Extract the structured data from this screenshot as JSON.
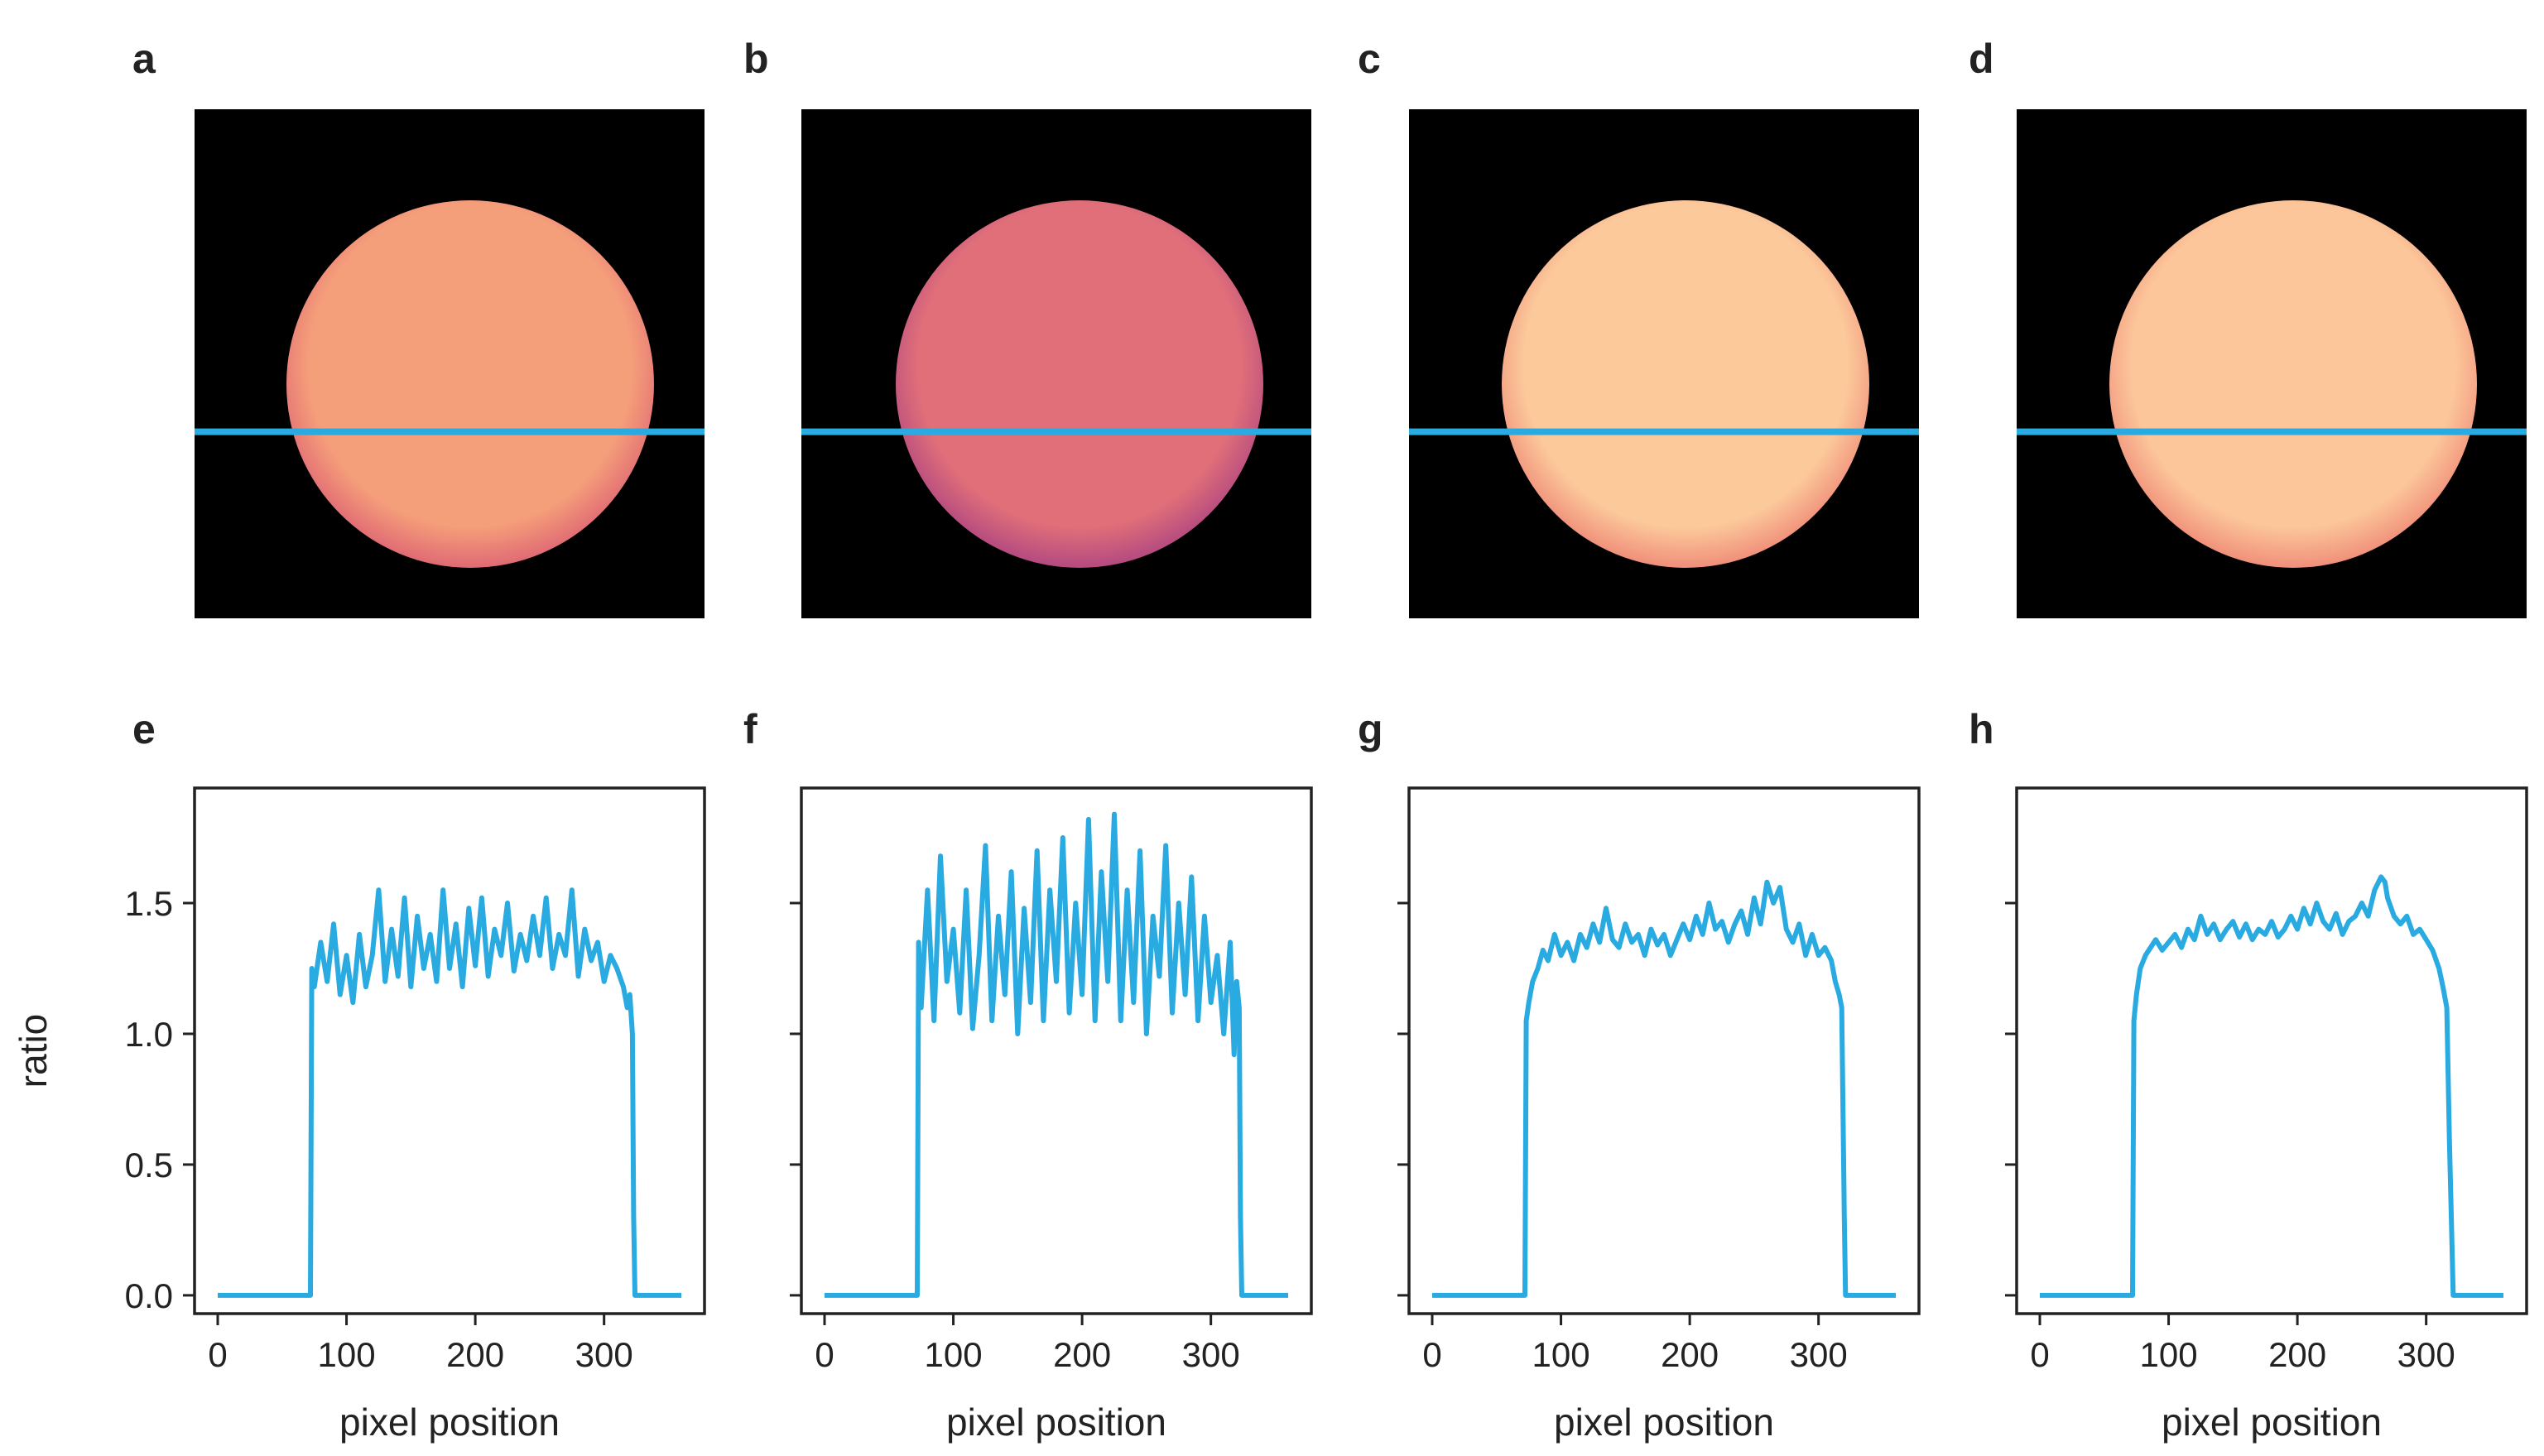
{
  "colors": {
    "line": "#29abe2",
    "image_background": "#000000",
    "frame": "#222222",
    "text": "#222222"
  },
  "image_panels": [
    {
      "label": "a",
      "disc_core": "#f59e7a",
      "disc_edge": "#e06a74",
      "line_row_fraction": 0.64
    },
    {
      "label": "b",
      "disc_core": "#e06f79",
      "disc_edge": "#b44a80",
      "line_row_fraction": 0.64
    },
    {
      "label": "c",
      "disc_core": "#fcc99b",
      "disc_edge": "#f08f7a",
      "line_row_fraction": 0.64
    },
    {
      "label": "d",
      "disc_core": "#fcc69a",
      "disc_edge": "#f0907a",
      "line_row_fraction": 0.64
    }
  ],
  "chart_data": [
    {
      "type": "line",
      "label": "e",
      "xlabel": "pixel position",
      "ylabel": "ratio",
      "xlim": [
        -18,
        378
      ],
      "ylim": [
        -0.07,
        1.94
      ],
      "xticks": [
        0,
        100,
        200,
        300
      ],
      "yticks": [
        0.0,
        0.5,
        1.0,
        1.5
      ],
      "xtick_labels": [
        "0",
        "100",
        "200",
        "300"
      ],
      "ytick_labels": [
        "0.0",
        "0.5",
        "1.0",
        "1.5"
      ],
      "edge_start": 72,
      "edge_end": 323,
      "x": [
        0,
        72,
        73,
        75,
        80,
        85,
        90,
        95,
        100,
        105,
        110,
        115,
        120,
        125,
        130,
        135,
        140,
        145,
        150,
        155,
        160,
        165,
        170,
        175,
        180,
        185,
        190,
        195,
        200,
        205,
        210,
        215,
        220,
        225,
        230,
        235,
        240,
        245,
        250,
        255,
        260,
        265,
        270,
        275,
        280,
        285,
        290,
        295,
        300,
        305,
        310,
        315,
        318,
        320,
        322,
        323,
        324,
        360
      ],
      "y": [
        0.0,
        0.0,
        1.25,
        1.18,
        1.35,
        1.2,
        1.42,
        1.15,
        1.3,
        1.12,
        1.38,
        1.18,
        1.3,
        1.55,
        1.2,
        1.4,
        1.22,
        1.52,
        1.18,
        1.45,
        1.25,
        1.38,
        1.2,
        1.55,
        1.25,
        1.42,
        1.18,
        1.48,
        1.26,
        1.52,
        1.22,
        1.4,
        1.3,
        1.5,
        1.24,
        1.38,
        1.28,
        1.45,
        1.3,
        1.52,
        1.25,
        1.38,
        1.3,
        1.55,
        1.22,
        1.4,
        1.28,
        1.35,
        1.2,
        1.3,
        1.25,
        1.18,
        1.1,
        1.15,
        1.0,
        0.3,
        0.0,
        0.0
      ]
    },
    {
      "type": "line",
      "label": "f",
      "xlabel": "pixel position",
      "xlim": [
        -18,
        378
      ],
      "ylim": [
        -0.07,
        1.94
      ],
      "xticks": [
        0,
        100,
        200,
        300
      ],
      "xtick_labels": [
        "0",
        "100",
        "200",
        "300"
      ],
      "edge_start": 72,
      "edge_end": 323,
      "x": [
        0,
        72,
        73,
        75,
        80,
        85,
        90,
        95,
        100,
        105,
        110,
        115,
        120,
        125,
        130,
        135,
        140,
        145,
        150,
        155,
        160,
        165,
        170,
        175,
        180,
        185,
        190,
        195,
        200,
        205,
        210,
        215,
        220,
        225,
        230,
        235,
        240,
        245,
        250,
        255,
        260,
        265,
        270,
        275,
        280,
        285,
        290,
        295,
        300,
        305,
        310,
        315,
        318,
        320,
        322,
        323,
        324,
        360
      ],
      "y": [
        0.0,
        0.0,
        1.35,
        1.1,
        1.55,
        1.05,
        1.68,
        1.2,
        1.4,
        1.08,
        1.55,
        1.02,
        1.3,
        1.72,
        1.05,
        1.45,
        1.15,
        1.62,
        1.0,
        1.48,
        1.12,
        1.7,
        1.05,
        1.55,
        1.2,
        1.75,
        1.08,
        1.5,
        1.15,
        1.82,
        1.05,
        1.62,
        1.2,
        1.84,
        1.05,
        1.55,
        1.12,
        1.7,
        1.0,
        1.45,
        1.22,
        1.72,
        1.08,
        1.5,
        1.15,
        1.6,
        1.05,
        1.45,
        1.12,
        1.3,
        1.0,
        1.35,
        0.92,
        1.2,
        1.1,
        0.3,
        0.0,
        0.0
      ]
    },
    {
      "type": "line",
      "label": "g",
      "xlabel": "pixel position",
      "xlim": [
        -18,
        378
      ],
      "ylim": [
        -0.07,
        1.94
      ],
      "xticks": [
        0,
        100,
        200,
        300
      ],
      "xtick_labels": [
        "0",
        "100",
        "200",
        "300"
      ],
      "edge_start": 72,
      "edge_end": 320,
      "x": [
        0,
        72,
        73,
        75,
        78,
        82,
        86,
        90,
        95,
        100,
        105,
        110,
        115,
        120,
        125,
        130,
        135,
        140,
        145,
        150,
        155,
        160,
        165,
        170,
        175,
        180,
        185,
        190,
        195,
        200,
        205,
        210,
        215,
        220,
        225,
        230,
        235,
        240,
        245,
        250,
        255,
        260,
        265,
        270,
        275,
        280,
        285,
        290,
        295,
        300,
        305,
        310,
        313,
        316,
        318,
        320,
        321,
        360
      ],
      "y": [
        0.0,
        0.0,
        1.05,
        1.12,
        1.2,
        1.25,
        1.32,
        1.28,
        1.38,
        1.3,
        1.35,
        1.28,
        1.38,
        1.33,
        1.42,
        1.35,
        1.48,
        1.36,
        1.33,
        1.42,
        1.35,
        1.38,
        1.3,
        1.4,
        1.34,
        1.38,
        1.3,
        1.36,
        1.42,
        1.36,
        1.45,
        1.38,
        1.5,
        1.4,
        1.43,
        1.35,
        1.42,
        1.47,
        1.38,
        1.52,
        1.42,
        1.58,
        1.5,
        1.56,
        1.4,
        1.35,
        1.42,
        1.3,
        1.38,
        1.3,
        1.33,
        1.28,
        1.2,
        1.15,
        1.1,
        0.3,
        0.0,
        0.0
      ]
    },
    {
      "type": "line",
      "label": "h",
      "xlabel": "pixel position",
      "xlim": [
        -18,
        378
      ],
      "ylim": [
        -0.07,
        1.94
      ],
      "xticks": [
        0,
        100,
        200,
        300
      ],
      "xtick_labels": [
        "0",
        "100",
        "200",
        "300"
      ],
      "edge_start": 72,
      "edge_end": 320,
      "x": [
        0,
        72,
        73,
        75,
        78,
        82,
        86,
        90,
        95,
        100,
        105,
        110,
        115,
        120,
        125,
        130,
        135,
        140,
        145,
        150,
        155,
        160,
        165,
        170,
        175,
        180,
        185,
        190,
        195,
        200,
        205,
        210,
        215,
        220,
        225,
        230,
        235,
        240,
        245,
        250,
        255,
        260,
        265,
        268,
        270,
        275,
        280,
        285,
        290,
        295,
        300,
        305,
        310,
        313,
        316,
        318,
        320,
        321,
        360
      ],
      "y": [
        0.0,
        0.0,
        1.05,
        1.15,
        1.25,
        1.3,
        1.33,
        1.36,
        1.32,
        1.35,
        1.38,
        1.33,
        1.4,
        1.36,
        1.45,
        1.38,
        1.42,
        1.36,
        1.4,
        1.43,
        1.37,
        1.42,
        1.36,
        1.4,
        1.38,
        1.43,
        1.37,
        1.4,
        1.45,
        1.4,
        1.48,
        1.42,
        1.5,
        1.43,
        1.4,
        1.46,
        1.38,
        1.43,
        1.45,
        1.5,
        1.45,
        1.55,
        1.6,
        1.58,
        1.52,
        1.45,
        1.42,
        1.45,
        1.38,
        1.4,
        1.36,
        1.32,
        1.25,
        1.18,
        1.1,
        0.6,
        0.2,
        0.0,
        0.0
      ]
    }
  ]
}
